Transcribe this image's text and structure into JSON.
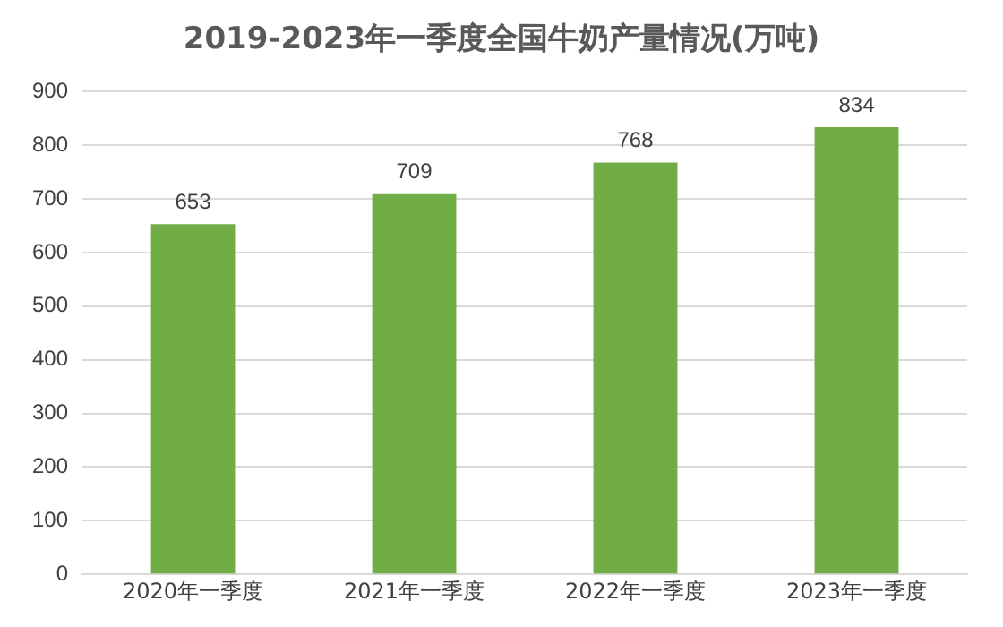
{
  "chart_data": {
    "type": "bar",
    "title": "2019-2023年一季度全国牛奶产量情况(万吨)",
    "categories": [
      "2020年一季度",
      "2021年一季度",
      "2022年一季度",
      "2023年一季度"
    ],
    "values": [
      653,
      709,
      768,
      834
    ],
    "color": "#70ad47",
    "ylim": [
      0,
      900
    ],
    "yticks": [
      0,
      100,
      200,
      300,
      400,
      500,
      600,
      700,
      800,
      900
    ],
    "grid": "y",
    "data_labels": true
  }
}
